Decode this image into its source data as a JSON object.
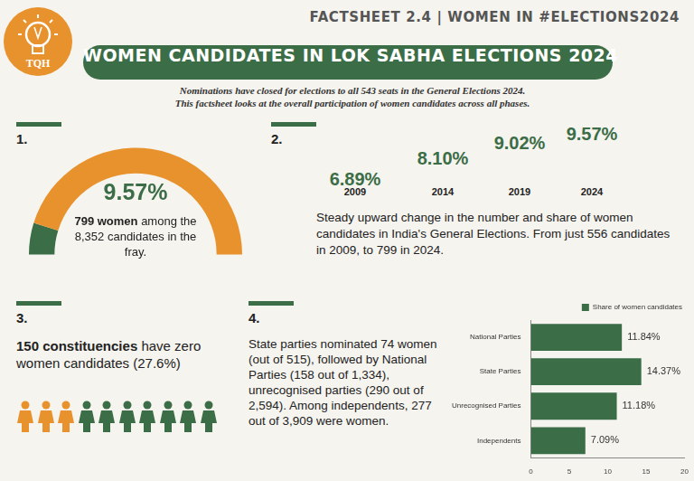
{
  "header": {
    "factsheet": "FACTSHEET 2.4 | WOMEN IN #ELECTIONS2024",
    "logo": "TQH",
    "title": "WOMEN CANDIDATES IN LOK SABHA ELECTIONS 2024",
    "subtitle": [
      "Nominations have closed for elections to all 543 seats in the General Elections 2024.",
      "This factsheet looks at the overall participation of women candidates across all phases."
    ]
  },
  "panel1": {
    "number": "1.",
    "value": 9.57,
    "value_label": "9.57%",
    "caption_bold": "799 women",
    "caption": "among the 8,352 candidates in the fray."
  },
  "panel2": {
    "number": "2.",
    "years": [
      "2009",
      "2014",
      "2019",
      "2024"
    ],
    "values": [
      6.89,
      8.1,
      9.02,
      9.57
    ],
    "value_labels": [
      "6.89%",
      "8.10%",
      "9.02%",
      "9.57%"
    ],
    "text": "Steady upward change in the number and share of women candidates in India's General Elections. From just 556 candidates in 2009, to 799 in 2024."
  },
  "panel3": {
    "number": "3.",
    "text_bold": "150 constituencies",
    "text": "have zero women candidates (27.6%)",
    "icons_total": 10,
    "icons_highlighted": 3
  },
  "panel4": {
    "number": "4.",
    "text": "State parties nominated 74 women (out of 515), followed by National Parties (158 out of 1,334), unrecognised parties (290 out of 2,594). Among independents, 277 out of 3,909 were women."
  },
  "chart_data": {
    "type": "bar",
    "orientation": "horizontal",
    "categories": [
      "National Parties",
      "State Parties",
      "Unrecognised Parties",
      "Independents"
    ],
    "series": [
      {
        "name": "Share of women candidates",
        "color": "#3b6d47",
        "values": [
          11.84,
          14.37,
          11.18,
          7.09
        ],
        "value_labels": [
          "11.84%",
          "14.37%",
          "11.18%",
          "7.09%"
        ]
      }
    ],
    "xlim": [
      0,
      20
    ],
    "xticks": [
      0,
      5,
      10,
      15,
      20
    ],
    "grid": false,
    "legend": "top",
    "data_labels": true
  }
}
